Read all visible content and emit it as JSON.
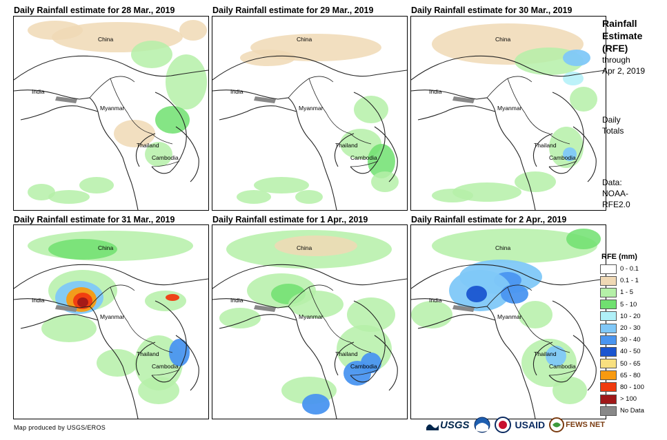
{
  "panels": [
    {
      "title": "Daily Rainfall estimate for 28 Mar., 2019"
    },
    {
      "title": "Daily Rainfall estimate for 29 Mar., 2019"
    },
    {
      "title": "Daily Rainfall estimate for 30 Mar., 2019"
    },
    {
      "title": "Daily Rainfall estimate for 31 Mar., 2019"
    },
    {
      "title": "Daily Rainfall estimate for 1 Apr., 2019"
    },
    {
      "title": "Daily Rainfall estimate for 2 Apr., 2019"
    }
  ],
  "map_labels": {
    "china": "China",
    "india": "India",
    "myanmar": "Myanmar",
    "thailand": "Thailand",
    "cambodia": "Cambodia"
  },
  "side": {
    "title1": "Rainfall",
    "title2": "Estimate",
    "title3": "(RFE)",
    "through1": "through",
    "through2": "Apr 2, 2019",
    "daily1": "Daily",
    "daily2": "Totals",
    "data1": "Data:",
    "data2": "NOAA-",
    "data3": "RFE2.0"
  },
  "legend": {
    "title": "RFE (mm)",
    "items": [
      {
        "label": "0 - 0.1",
        "color": "#ffffff"
      },
      {
        "label": "0.1 - 1",
        "color": "#f0d9b5"
      },
      {
        "label": "1 - 5",
        "color": "#b5f0a8"
      },
      {
        "label": "5 - 10",
        "color": "#70e070"
      },
      {
        "label": "10 - 20",
        "color": "#b0f0f8"
      },
      {
        "label": "20 - 30",
        "color": "#80c8f8"
      },
      {
        "label": "30 - 40",
        "color": "#4a95f0"
      },
      {
        "label": "40 - 50",
        "color": "#1a55d0"
      },
      {
        "label": "50 - 65",
        "color": "#f8e080"
      },
      {
        "label": "65 - 80",
        "color": "#f89a10"
      },
      {
        "label": "80 - 100",
        "color": "#f03a10"
      },
      {
        "label": "> 100",
        "color": "#a01818"
      },
      {
        "label": "No Data",
        "color": "#888888"
      }
    ]
  },
  "credit": "Map produced by USGS/EROS",
  "logos": {
    "usgs": "USGS",
    "usaid": "USAID",
    "fewsnet": "FEWS NET"
  }
}
